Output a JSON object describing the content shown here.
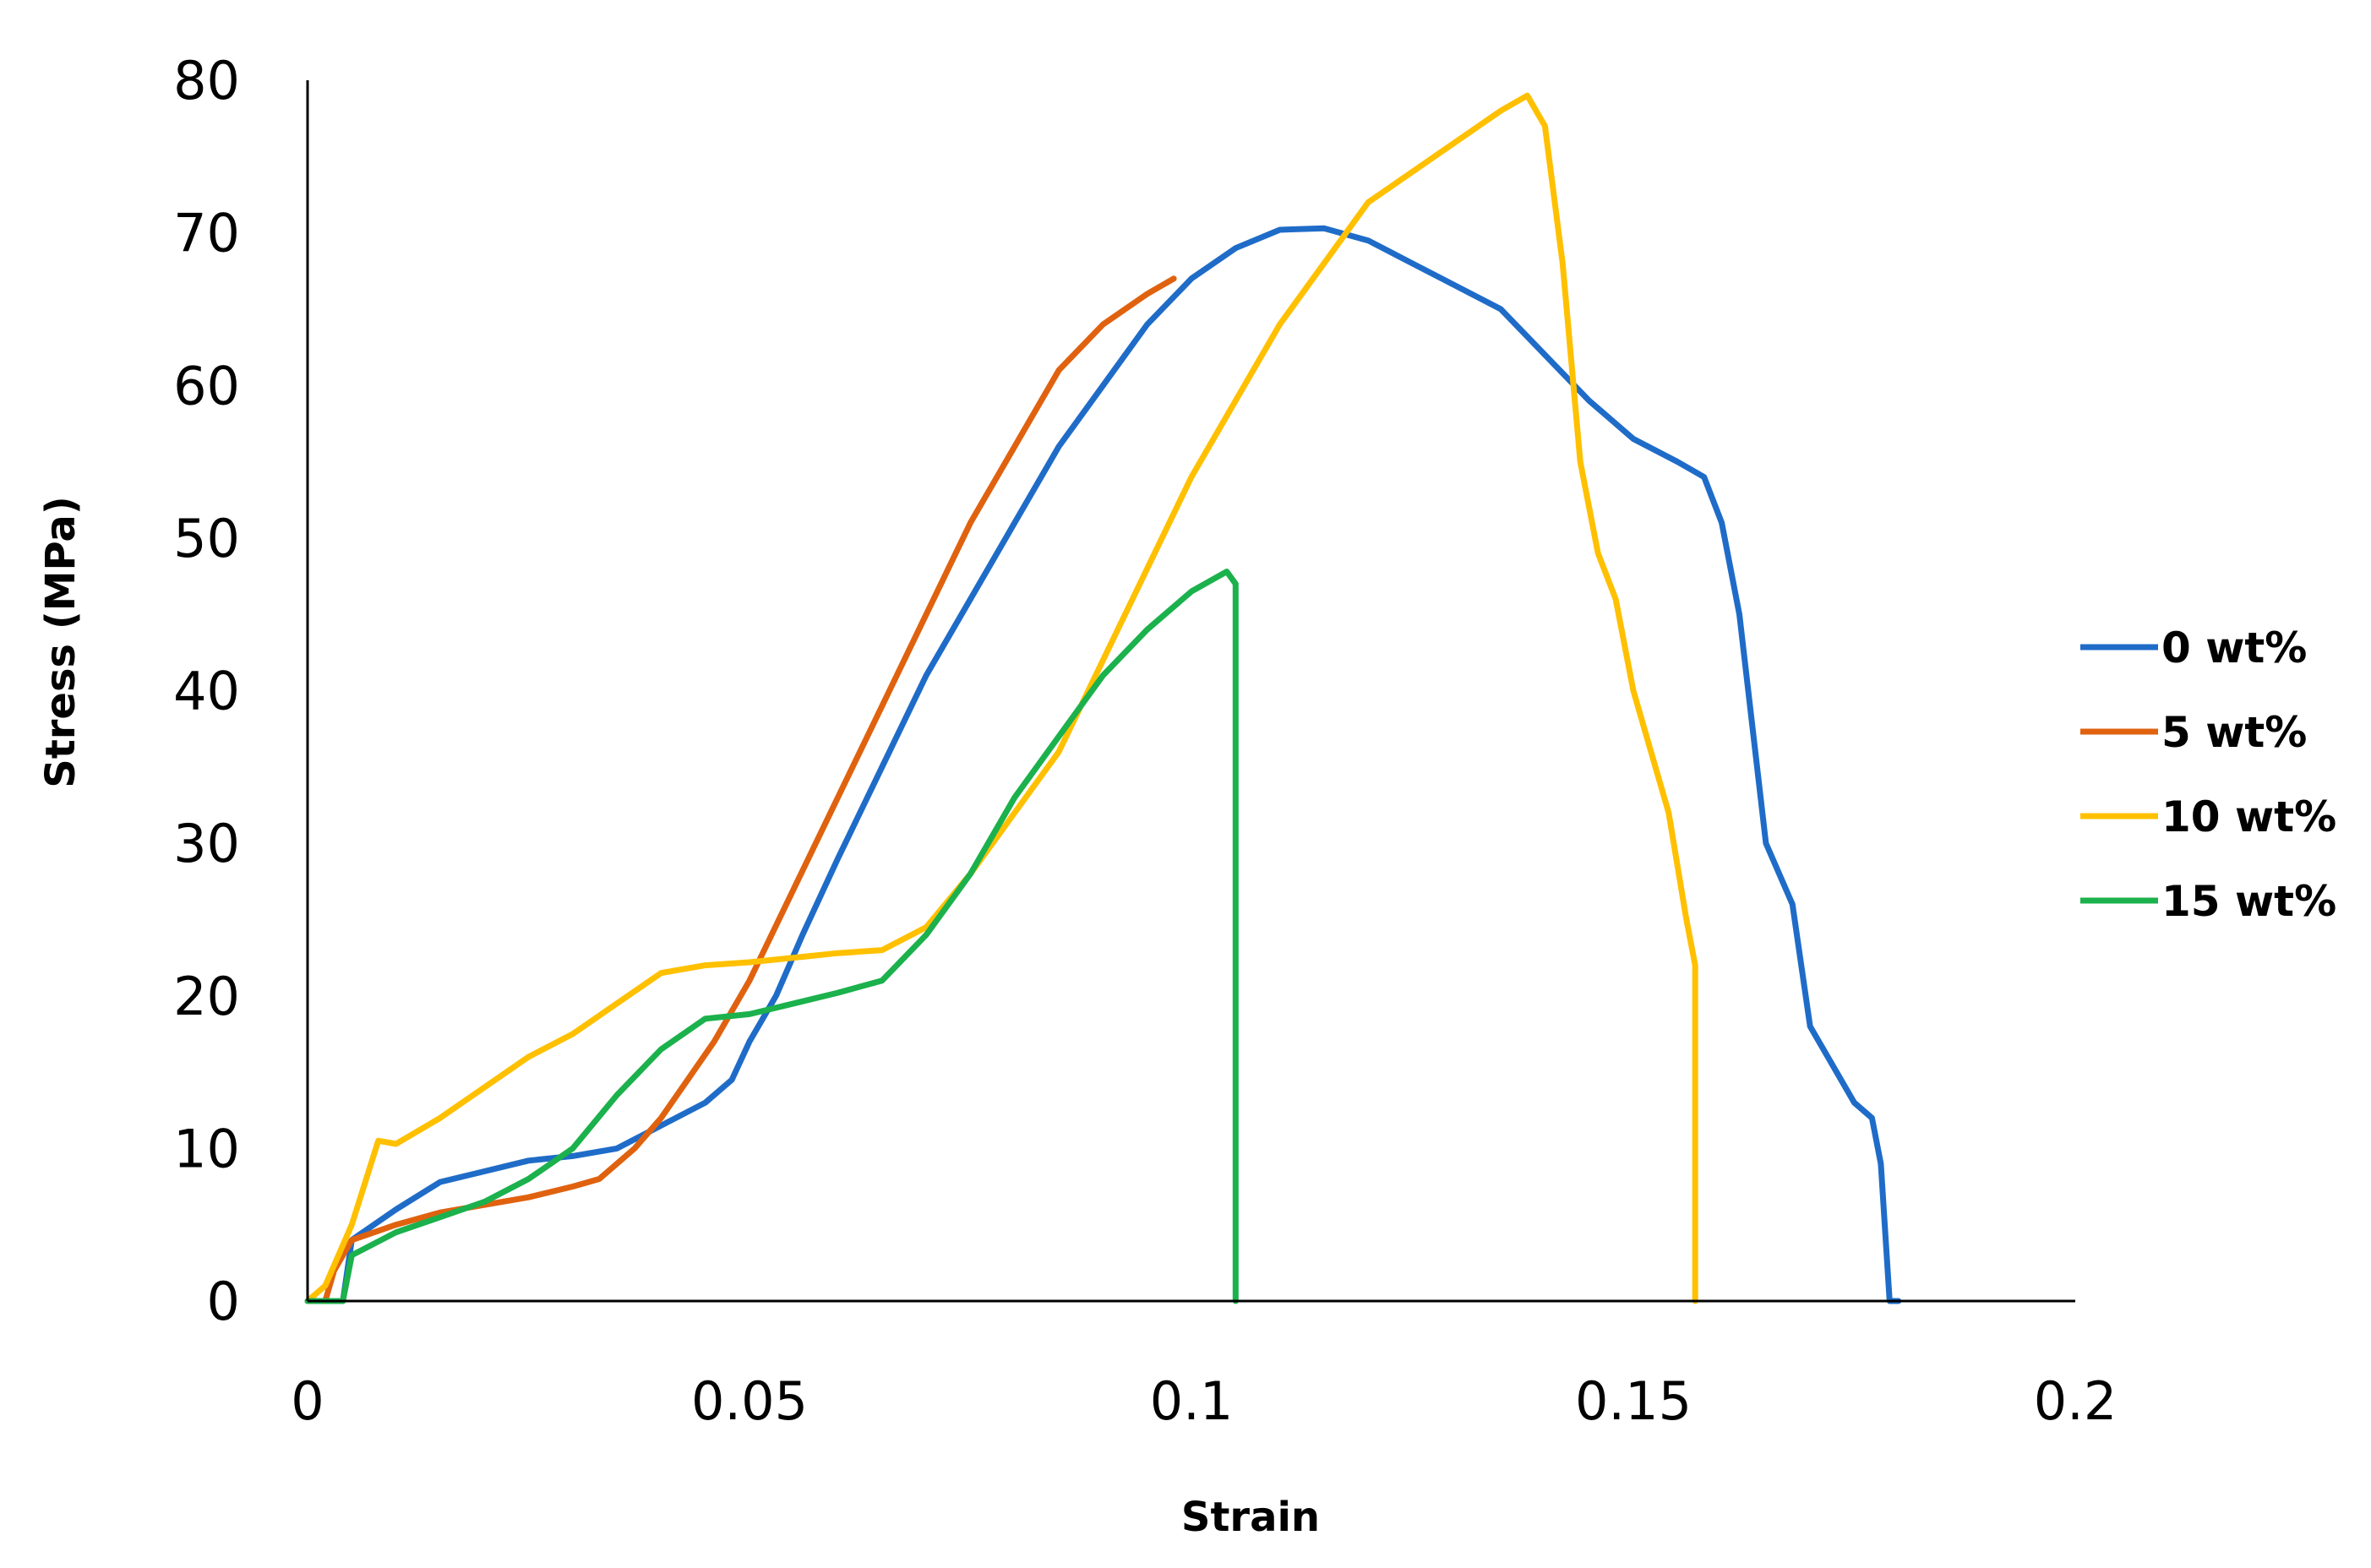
{
  "chart_data": {
    "type": "line",
    "title": "",
    "xlabel": "Strain",
    "ylabel": "Stress (MPa)",
    "xlim": [
      0,
      0.2
    ],
    "ylim": [
      0,
      80
    ],
    "x_ticks": [
      0,
      0.05,
      0.1,
      0.15,
      0.2
    ],
    "x_tick_labels": [
      "0",
      "0.05",
      "0.1",
      "0.15",
      "0.2"
    ],
    "y_ticks": [
      0,
      10,
      20,
      30,
      40,
      50,
      60,
      70,
      80
    ],
    "y_tick_labels": [
      "0",
      "10",
      "20",
      "30",
      "40",
      "50",
      "60",
      "70",
      "80"
    ],
    "grid": false,
    "legend_position": "right",
    "series": [
      {
        "name": "0 wt%",
        "color": "#1F6CC8",
        "points": [
          [
            0,
            0
          ],
          [
            0.004,
            0
          ],
          [
            0.005,
            4
          ],
          [
            0.01,
            6
          ],
          [
            0.015,
            7.8
          ],
          [
            0.02,
            8.5
          ],
          [
            0.025,
            9.2
          ],
          [
            0.03,
            9.5
          ],
          [
            0.035,
            10
          ],
          [
            0.04,
            11.5
          ],
          [
            0.045,
            13
          ],
          [
            0.048,
            14.5
          ],
          [
            0.05,
            17
          ],
          [
            0.053,
            20
          ],
          [
            0.056,
            24
          ],
          [
            0.06,
            29
          ],
          [
            0.065,
            35
          ],
          [
            0.07,
            41
          ],
          [
            0.075,
            46
          ],
          [
            0.08,
            51
          ],
          [
            0.085,
            56
          ],
          [
            0.09,
            60
          ],
          [
            0.095,
            64
          ],
          [
            0.1,
            67
          ],
          [
            0.105,
            69
          ],
          [
            0.11,
            70.2
          ],
          [
            0.115,
            70.3
          ],
          [
            0.12,
            69.5
          ],
          [
            0.125,
            68
          ],
          [
            0.13,
            66.5
          ],
          [
            0.135,
            65
          ],
          [
            0.14,
            62
          ],
          [
            0.145,
            59
          ],
          [
            0.15,
            56.5
          ],
          [
            0.155,
            55
          ],
          [
            0.158,
            54
          ],
          [
            0.16,
            51
          ],
          [
            0.162,
            45
          ],
          [
            0.165,
            30
          ],
          [
            0.168,
            26
          ],
          [
            0.17,
            18
          ],
          [
            0.175,
            13
          ],
          [
            0.177,
            12
          ],
          [
            0.178,
            9
          ],
          [
            0.179,
            0
          ],
          [
            0.18,
            0
          ]
        ]
      },
      {
        "name": "5 wt%",
        "color": "#E0620F",
        "points": [
          [
            0.002,
            0
          ],
          [
            0.003,
            2
          ],
          [
            0.005,
            4
          ],
          [
            0.01,
            5
          ],
          [
            0.015,
            5.8
          ],
          [
            0.02,
            6.3
          ],
          [
            0.025,
            6.8
          ],
          [
            0.03,
            7.5
          ],
          [
            0.033,
            8
          ],
          [
            0.037,
            10
          ],
          [
            0.04,
            12
          ],
          [
            0.043,
            14.5
          ],
          [
            0.046,
            17
          ],
          [
            0.05,
            21
          ],
          [
            0.055,
            27
          ],
          [
            0.06,
            33
          ],
          [
            0.065,
            39
          ],
          [
            0.07,
            45
          ],
          [
            0.075,
            51
          ],
          [
            0.08,
            56
          ],
          [
            0.085,
            61
          ],
          [
            0.09,
            64
          ],
          [
            0.095,
            66
          ],
          [
            0.098,
            67
          ]
        ]
      },
      {
        "name": "10 wt%",
        "color": "#FFC000",
        "points": [
          [
            0,
            0
          ],
          [
            0.002,
            1
          ],
          [
            0.005,
            5
          ],
          [
            0.008,
            10.5
          ],
          [
            0.01,
            10.3
          ],
          [
            0.015,
            12
          ],
          [
            0.02,
            14
          ],
          [
            0.025,
            16
          ],
          [
            0.03,
            17.5
          ],
          [
            0.035,
            19.5
          ],
          [
            0.04,
            21.5
          ],
          [
            0.045,
            22
          ],
          [
            0.05,
            22.2
          ],
          [
            0.055,
            22.5
          ],
          [
            0.06,
            22.8
          ],
          [
            0.065,
            23
          ],
          [
            0.07,
            24.5
          ],
          [
            0.075,
            28
          ],
          [
            0.08,
            32
          ],
          [
            0.085,
            36
          ],
          [
            0.09,
            42
          ],
          [
            0.095,
            48
          ],
          [
            0.1,
            54
          ],
          [
            0.105,
            59
          ],
          [
            0.11,
            64
          ],
          [
            0.115,
            68
          ],
          [
            0.12,
            72
          ],
          [
            0.125,
            74
          ],
          [
            0.13,
            76
          ],
          [
            0.135,
            78
          ],
          [
            0.138,
            79
          ],
          [
            0.14,
            77
          ],
          [
            0.142,
            68
          ],
          [
            0.144,
            55
          ],
          [
            0.146,
            49
          ],
          [
            0.148,
            46
          ],
          [
            0.15,
            40
          ],
          [
            0.152,
            36
          ],
          [
            0.154,
            32
          ],
          [
            0.156,
            25
          ],
          [
            0.157,
            22
          ],
          [
            0.157,
            0
          ]
        ]
      },
      {
        "name": "15 wt%",
        "color": "#1BB14C",
        "points": [
          [
            0,
            0
          ],
          [
            0.004,
            0
          ],
          [
            0.005,
            3
          ],
          [
            0.01,
            4.5
          ],
          [
            0.015,
            5.5
          ],
          [
            0.02,
            6.5
          ],
          [
            0.025,
            8
          ],
          [
            0.03,
            10
          ],
          [
            0.035,
            13.5
          ],
          [
            0.04,
            16.5
          ],
          [
            0.045,
            18.5
          ],
          [
            0.05,
            18.8
          ],
          [
            0.055,
            19.5
          ],
          [
            0.06,
            20.2
          ],
          [
            0.065,
            21
          ],
          [
            0.07,
            24
          ],
          [
            0.075,
            28
          ],
          [
            0.08,
            33
          ],
          [
            0.085,
            37
          ],
          [
            0.09,
            41
          ],
          [
            0.095,
            44
          ],
          [
            0.1,
            46.5
          ],
          [
            0.104,
            47.8
          ],
          [
            0.105,
            47
          ],
          [
            0.105,
            0
          ]
        ]
      }
    ]
  }
}
